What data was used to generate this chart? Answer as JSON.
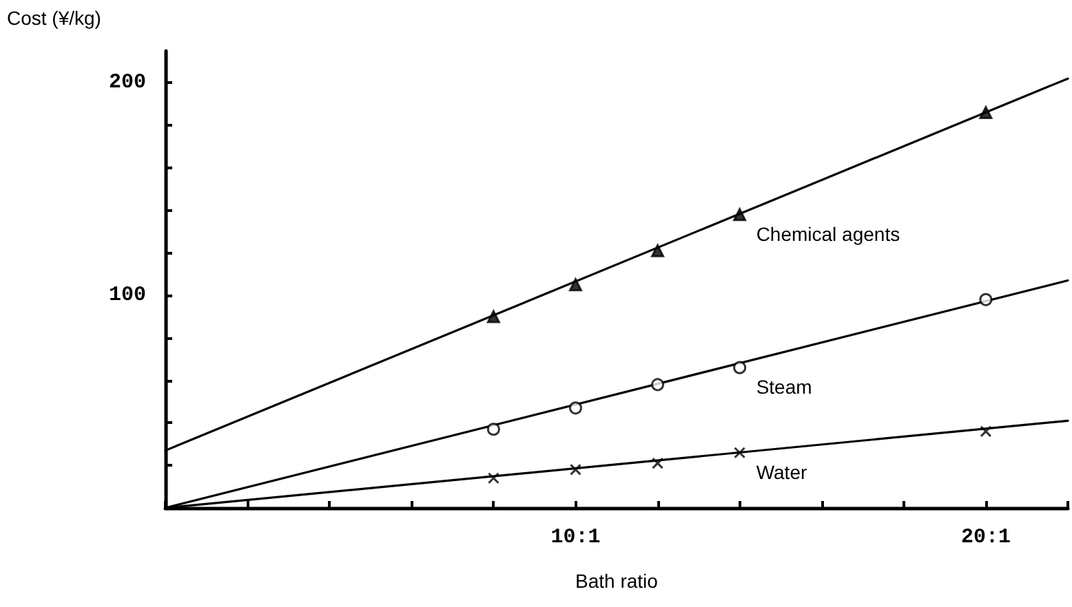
{
  "chart_data": {
    "type": "scatter",
    "xlabel": "Bath ratio",
    "ylabel": "Cost (¥/kg)",
    "categories": [
      null,
      null,
      null,
      null,
      null,
      "10:1",
      null,
      null,
      null,
      null,
      "20:1",
      null
    ],
    "ylim": [
      0,
      215
    ],
    "yticks": [
      {
        "value": 20,
        "label": null
      },
      {
        "value": 40,
        "label": null
      },
      {
        "value": 60,
        "label": null
      },
      {
        "value": 80,
        "label": null
      },
      100,
      {
        "value": 120,
        "label": null
      },
      {
        "value": 140,
        "label": null
      },
      {
        "value": 160,
        "label": null
      },
      {
        "value": 180,
        "label": null
      },
      200
    ],
    "grid": false,
    "legend": false,
    "series": [
      {
        "type": "line",
        "color": "#000000",
        "marker": "none",
        "line_style": "solid",
        "values": [
          27,
          null,
          null,
          null,
          null,
          null,
          null,
          null,
          null,
          null,
          null,
          202
        ]
      },
      {
        "type": "line",
        "color": "#000000",
        "marker": "none",
        "line_style": "solid",
        "values": [
          0,
          null,
          null,
          null,
          null,
          null,
          null,
          null,
          null,
          null,
          null,
          107
        ]
      },
      {
        "type": "line",
        "color": "#000000",
        "marker": "none",
        "line_style": "solid",
        "values": [
          0,
          null,
          null,
          null,
          null,
          null,
          null,
          null,
          null,
          null,
          null,
          41
        ]
      },
      {
        "name": "Chemical agents",
        "color": "#000000",
        "marker": "triangle",
        "values": [
          null,
          null,
          null,
          null,
          90,
          105,
          121,
          138,
          null,
          null,
          186,
          null
        ]
      },
      {
        "name": "Steam",
        "color": "#000000",
        "marker": "circle",
        "values": [
          null,
          null,
          null,
          null,
          37,
          47,
          58,
          66,
          null,
          null,
          98,
          null
        ]
      },
      {
        "name": "Water",
        "color": "#000000",
        "marker": "cross",
        "values": [
          null,
          null,
          null,
          null,
          14,
          18,
          21,
          26,
          null,
          null,
          36,
          null
        ]
      }
    ]
  }
}
